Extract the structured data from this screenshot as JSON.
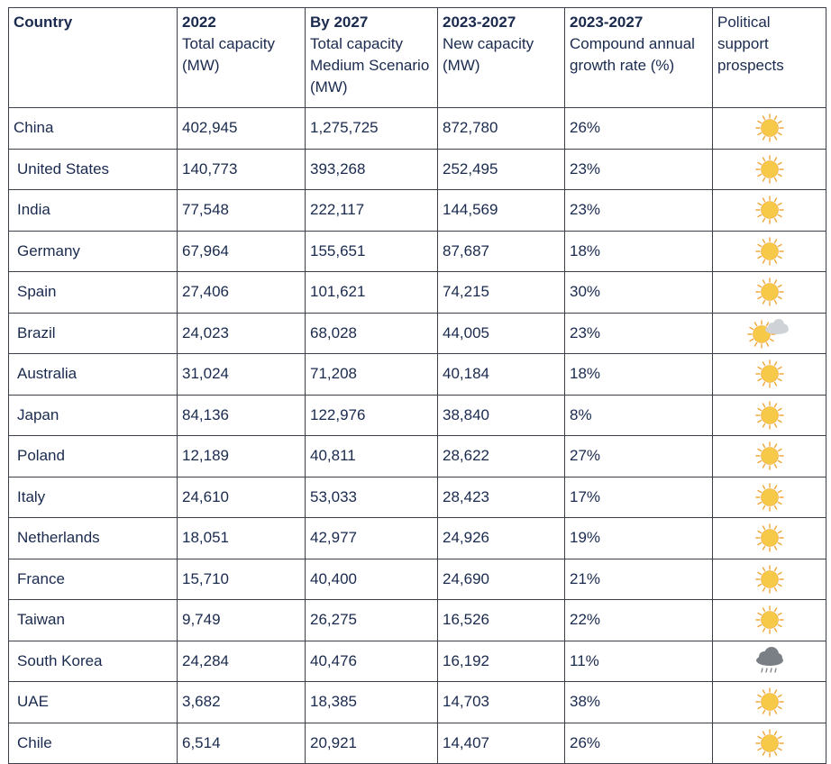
{
  "headers": [
    {
      "bold": "Country",
      "rest": ""
    },
    {
      "bold": "2022",
      "rest": "Total capacity (MW)"
    },
    {
      "bold": "By 2027",
      "rest": "Total capacity Medium Scenario (MW)"
    },
    {
      "bold": "2023-2027",
      "rest": "New capacity (MW)"
    },
    {
      "bold": "2023-2027",
      "rest": "Compound annual growth rate (%)"
    },
    {
      "bold": "",
      "rest": "Political support prospects"
    }
  ],
  "rows": [
    {
      "country": "China",
      "cap2022": "402,945",
      "cap2027": "1,275,725",
      "newcap": "872,780",
      "cagr": "26%",
      "prospect": "sunny-icon"
    },
    {
      "country": "United States",
      "cap2022": "140,773",
      "cap2027": "393,268",
      "newcap": "252,495",
      "cagr": "23%",
      "prospect": "sunny-icon"
    },
    {
      "country": "India",
      "cap2022": "77,548",
      "cap2027": "222,117",
      "newcap": "144,569",
      "cagr": "23%",
      "prospect": "sunny-icon"
    },
    {
      "country": "Germany",
      "cap2022": "67,964",
      "cap2027": "155,651",
      "newcap": "87,687",
      "cagr": "18%",
      "prospect": "sunny-icon"
    },
    {
      "country": "Spain",
      "cap2022": "27,406",
      "cap2027": "101,621",
      "newcap": "74,215",
      "cagr": "30%",
      "prospect": "sunny-icon"
    },
    {
      "country": "Brazil",
      "cap2022": "24,023",
      "cap2027": "68,028",
      "newcap": "44,005",
      "cagr": "23%",
      "prospect": "partly-cloudy-icon"
    },
    {
      "country": "Australia",
      "cap2022": "31,024",
      "cap2027": "71,208",
      "newcap": "40,184",
      "cagr": "18%",
      "prospect": "sunny-icon"
    },
    {
      "country": "Japan",
      "cap2022": "84,136",
      "cap2027": "122,976",
      "newcap": "38,840",
      "cagr": "8%",
      "prospect": "sunny-icon"
    },
    {
      "country": "Poland",
      "cap2022": "12,189",
      "cap2027": "40,811",
      "newcap": "28,622",
      "cagr": "27%",
      "prospect": "sunny-icon"
    },
    {
      "country": "Italy",
      "cap2022": "24,610",
      "cap2027": "53,033",
      "newcap": "28,423",
      "cagr": "17%",
      "prospect": "sunny-icon"
    },
    {
      "country": "Netherlands",
      "cap2022": "18,051",
      "cap2027": "42,977",
      "newcap": "24,926",
      "cagr": "19%",
      "prospect": "sunny-icon"
    },
    {
      "country": "France",
      "cap2022": "15,710",
      "cap2027": "40,400",
      "newcap": "24,690",
      "cagr": "21%",
      "prospect": "sunny-icon"
    },
    {
      "country": "Taiwan",
      "cap2022": "9,749",
      "cap2027": "26,275",
      "newcap": "16,526",
      "cagr": "22%",
      "prospect": "sunny-icon"
    },
    {
      "country": "South Korea",
      "cap2022": "24,284",
      "cap2027": "40,476",
      "newcap": "16,192",
      "cagr": "11%",
      "prospect": "rain-cloud-icon"
    },
    {
      "country": "UAE",
      "cap2022": "3,682",
      "cap2027": "18,385",
      "newcap": "14,703",
      "cagr": "38%",
      "prospect": "sunny-icon"
    },
    {
      "country": "Chile",
      "cap2022": "6,514",
      "cap2027": "20,921",
      "newcap": "14,407",
      "cagr": "26%",
      "prospect": "sunny-icon"
    }
  ],
  "colors": {
    "text": "#1a2a4e",
    "border": "#3a3f4a",
    "sun_fill": "#f7c948",
    "sun_ray": "#f0a73a",
    "cloud_light": "#cfd2d6",
    "cloud_dark": "#7a7f86"
  }
}
